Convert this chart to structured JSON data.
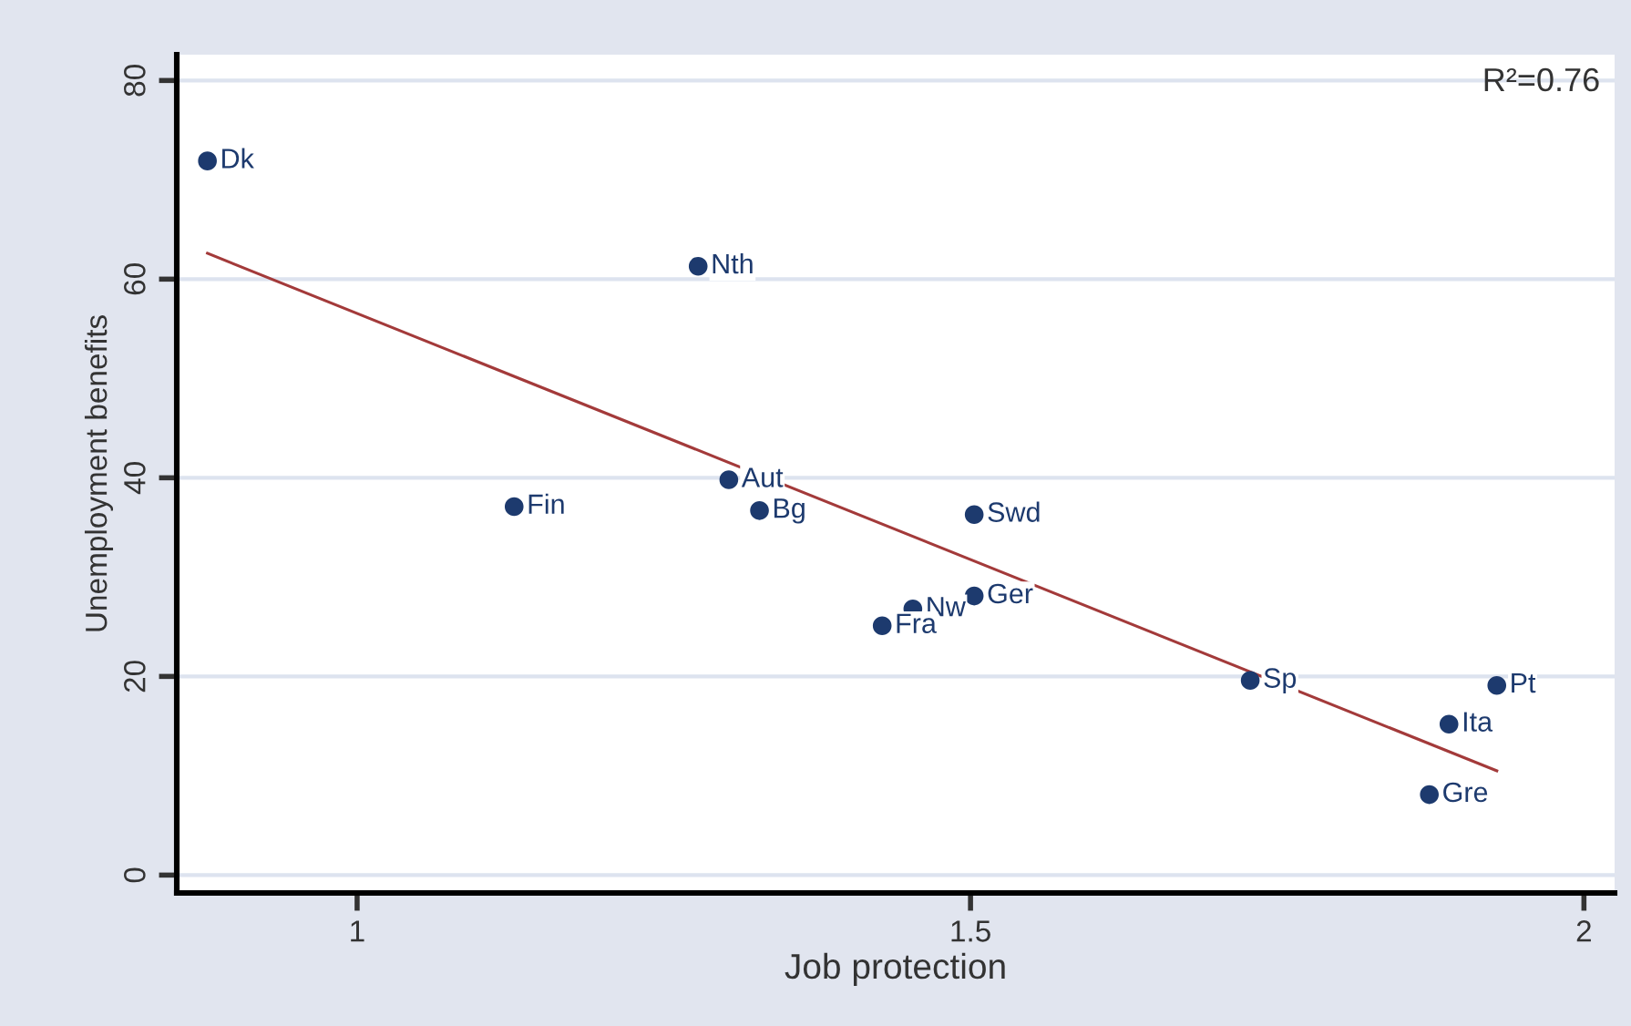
{
  "chart_data": {
    "type": "scatter",
    "xlabel": "Job protection",
    "ylabel": "Unemployment benefits",
    "xlim": [
      0.853,
      2.025
    ],
    "ylim": [
      -1.8,
      82.6
    ],
    "xticks": [
      1,
      1.5,
      2
    ],
    "yticks": [
      0,
      20,
      40,
      60,
      80
    ],
    "grid": "y",
    "series": [
      {
        "marker": "circle",
        "color": "#1d3a6e",
        "x": [
          0.878,
          1.278,
          1.128,
          1.303,
          1.328,
          1.503,
          1.503,
          1.453,
          1.428,
          1.728,
          1.929,
          1.89,
          1.874
        ],
        "values": [
          71.9,
          61.3,
          37.1,
          39.8,
          36.7,
          36.3,
          28.1,
          26.8,
          25.1,
          19.6,
          19.1,
          15.2,
          8.1
        ]
      },
      {
        "type": "line",
        "color": "#a33a3a",
        "x": [
          0.878,
          1.929
        ],
        "values": [
          62.6,
          10.5
        ]
      }
    ],
    "annotations": [
      {
        "text": "Dk",
        "x": 0.878,
        "y": 71.9
      },
      {
        "text": "Nth",
        "x": 1.278,
        "y": 61.3
      },
      {
        "text": "Fin",
        "x": 1.128,
        "y": 37.1
      },
      {
        "text": "Aut",
        "x": 1.303,
        "y": 39.8
      },
      {
        "text": "Bg",
        "x": 1.328,
        "y": 36.7
      },
      {
        "text": "Swd",
        "x": 1.503,
        "y": 36.3
      },
      {
        "text": "Ger",
        "x": 1.503,
        "y": 28.1
      },
      {
        "text": "Nw",
        "x": 1.453,
        "y": 26.8
      },
      {
        "text": "Fra",
        "x": 1.428,
        "y": 25.1
      },
      {
        "text": "Sp",
        "x": 1.728,
        "y": 19.6
      },
      {
        "text": "Pt",
        "x": 1.929,
        "y": 19.1
      },
      {
        "text": "Ita",
        "x": 1.89,
        "y": 15.2
      },
      {
        "text": "Gre",
        "x": 1.874,
        "y": 8.1
      },
      "R²=0.76"
    ]
  }
}
